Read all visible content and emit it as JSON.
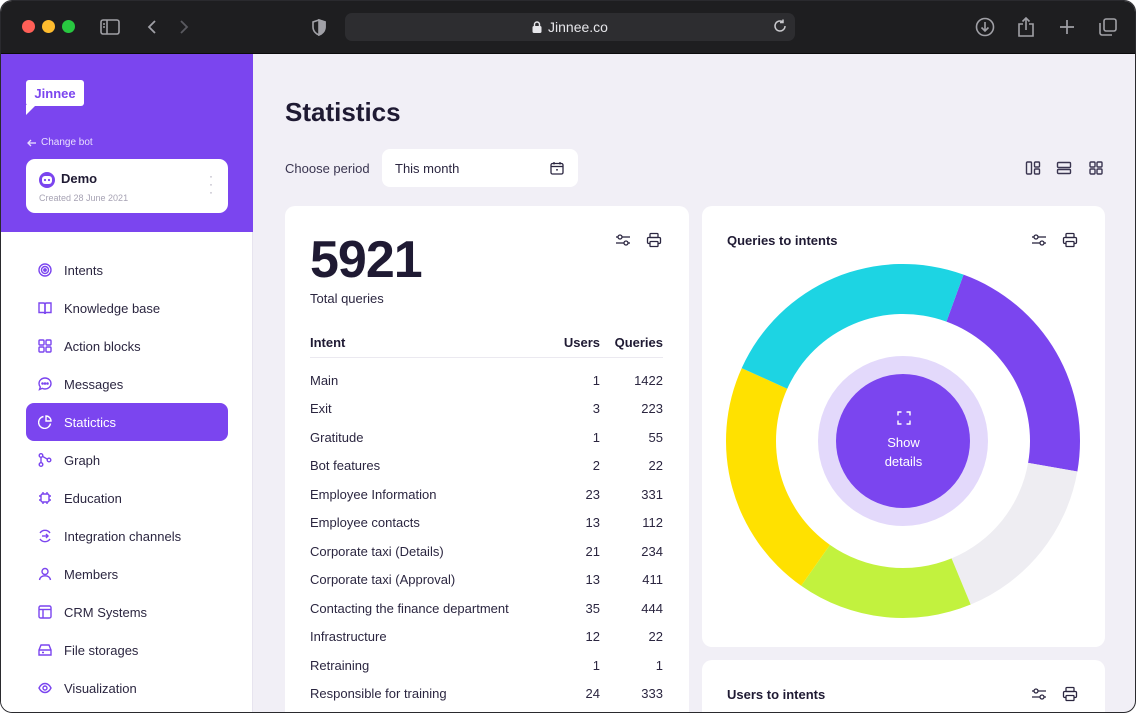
{
  "browser": {
    "url": "Jinnee.co"
  },
  "sidebar": {
    "logo_text": "Jinnee",
    "change_bot": "Change bot",
    "bot": {
      "name": "Demo",
      "created": "Created 28 June 2021"
    },
    "items": [
      {
        "label": "Intents",
        "icon": "target-icon"
      },
      {
        "label": "Knowledge base",
        "icon": "book-icon"
      },
      {
        "label": "Action blocks",
        "icon": "grid-icon"
      },
      {
        "label": "Messages",
        "icon": "chat-icon"
      },
      {
        "label": "Statictics",
        "icon": "pie-chart-icon"
      },
      {
        "label": "Graph",
        "icon": "graph-icon"
      },
      {
        "label": "Education",
        "icon": "chip-icon"
      },
      {
        "label": "Integration channels",
        "icon": "integration-icon"
      },
      {
        "label": "Members",
        "icon": "user-icon"
      },
      {
        "label": "CRM Systems",
        "icon": "layout-icon"
      },
      {
        "label": "File storages",
        "icon": "storage-icon"
      },
      {
        "label": "Visualization",
        "icon": "eye-icon"
      }
    ],
    "active_index": 4
  },
  "main": {
    "title": "Statistics",
    "period_label": "Choose period",
    "period_value": "This month"
  },
  "total_card": {
    "total": "5921",
    "total_label": "Total queries",
    "columns": [
      "Intent",
      "Users",
      "Queries"
    ],
    "rows": [
      {
        "intent": "Main",
        "users": "1",
        "queries": "1422"
      },
      {
        "intent": "Exit",
        "users": "3",
        "queries": "223"
      },
      {
        "intent": "Gratitude",
        "users": "1",
        "queries": "55"
      },
      {
        "intent": "Bot features",
        "users": "2",
        "queries": "22"
      },
      {
        "intent": "Employee Information",
        "users": "23",
        "queries": "331"
      },
      {
        "intent": "Employee contacts",
        "users": "13",
        "queries": "112"
      },
      {
        "intent": "Corporate taxi (Details)",
        "users": "21",
        "queries": "234"
      },
      {
        "intent": "Corporate taxi (Approval)",
        "users": "13",
        "queries": "411"
      },
      {
        "intent": "Contacting the finance department",
        "users": "35",
        "queries": "444"
      },
      {
        "intent": "Infrastructure",
        "users": "12",
        "queries": "22"
      },
      {
        "intent": "Retraining",
        "users": "1",
        "queries": "1"
      },
      {
        "intent": "Responsible for training",
        "users": "24",
        "queries": "333"
      }
    ]
  },
  "queries_card": {
    "title": "Queries to intents",
    "show_details": [
      "Show",
      "details"
    ]
  },
  "users_card": {
    "title": "Users to intents"
  },
  "chart_data": {
    "type": "pie",
    "segments": [
      {
        "color": "#7b45ef",
        "fraction": 0.222
      },
      {
        "color": "#eeedf2",
        "fraction": 0.16
      },
      {
        "color": "#c2f23e",
        "fraction": 0.16
      },
      {
        "color": "#ffe100",
        "fraction": 0.22
      },
      {
        "color": "#1dd4e3",
        "fraction": 0.238
      }
    ]
  },
  "colors": {
    "accent": "#7b45ef",
    "background": "#f1eff6"
  }
}
